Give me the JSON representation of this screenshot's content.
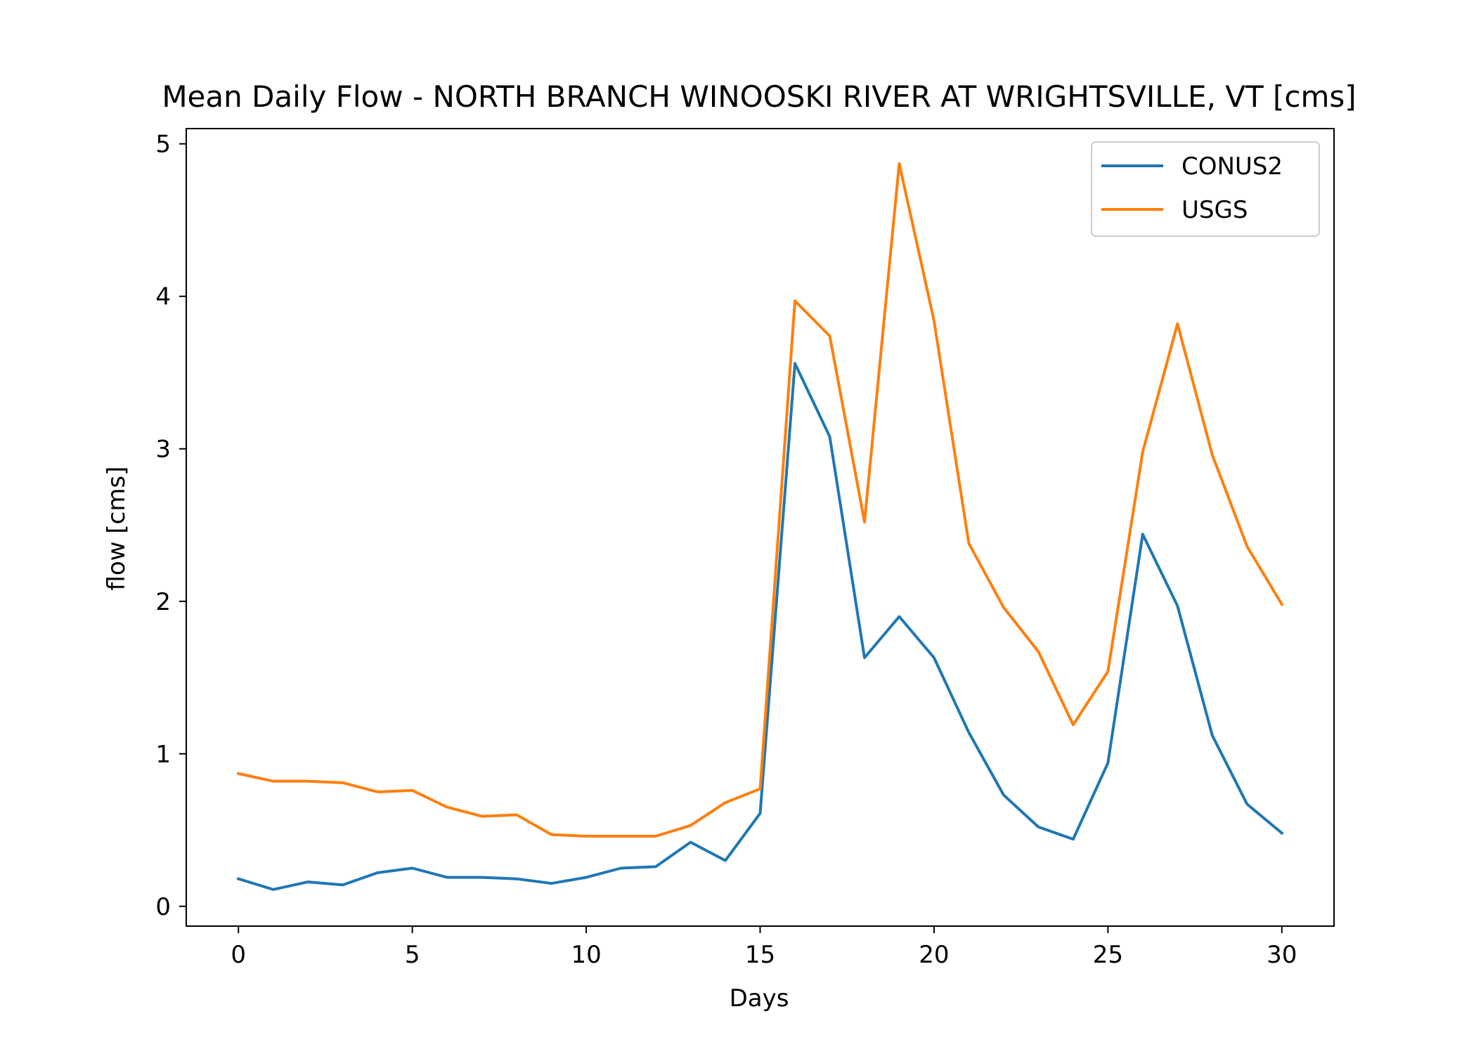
{
  "chart_data": {
    "type": "line",
    "title": "Mean Daily Flow - NORTH BRANCH WINOOSKI RIVER AT WRIGHTSVILLE, VT [cms]",
    "xlabel": "Days",
    "ylabel": "flow [cms]",
    "xlim": [
      -1.5,
      31.5
    ],
    "ylim": [
      -0.13,
      5.1
    ],
    "xticks": [
      0,
      5,
      10,
      15,
      20,
      25,
      30
    ],
    "yticks": [
      0,
      1,
      2,
      3,
      4,
      5
    ],
    "legend_position": "top-right",
    "grid": false,
    "x": [
      0,
      1,
      2,
      3,
      4,
      5,
      6,
      7,
      8,
      9,
      10,
      11,
      12,
      13,
      14,
      15,
      16,
      17,
      18,
      19,
      20,
      21,
      22,
      23,
      24,
      25,
      26,
      27,
      28,
      29,
      30
    ],
    "series": [
      {
        "name": "CONUS2",
        "color": "#1f77b4",
        "values": [
          0.18,
          0.11,
          0.16,
          0.14,
          0.22,
          0.25,
          0.19,
          0.19,
          0.18,
          0.15,
          0.19,
          0.25,
          0.26,
          0.42,
          0.3,
          0.61,
          3.56,
          3.08,
          1.63,
          1.9,
          1.63,
          1.14,
          0.73,
          0.52,
          0.44,
          0.94,
          2.44,
          1.97,
          1.12,
          0.67,
          0.48
        ]
      },
      {
        "name": "USGS",
        "color": "#ff7f0e",
        "values": [
          0.87,
          0.82,
          0.82,
          0.81,
          0.75,
          0.76,
          0.65,
          0.59,
          0.6,
          0.47,
          0.46,
          0.46,
          0.46,
          0.53,
          0.68,
          0.77,
          3.97,
          3.74,
          2.52,
          4.87,
          3.84,
          2.38,
          1.96,
          1.67,
          1.19,
          1.54,
          2.98,
          3.82,
          2.96,
          2.36,
          1.98
        ]
      }
    ]
  }
}
